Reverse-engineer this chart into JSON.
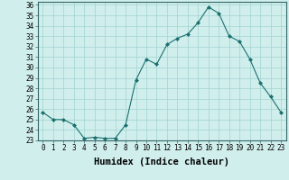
{
  "x": [
    0,
    1,
    2,
    3,
    4,
    5,
    6,
    7,
    8,
    9,
    10,
    11,
    12,
    13,
    14,
    15,
    16,
    17,
    18,
    19,
    20,
    21,
    22,
    23
  ],
  "y": [
    25.7,
    25.0,
    25.0,
    24.5,
    23.2,
    23.3,
    23.2,
    23.2,
    24.5,
    28.8,
    30.8,
    30.3,
    32.2,
    32.8,
    33.2,
    34.3,
    35.8,
    35.2,
    33.0,
    32.5,
    30.8,
    28.5,
    27.2,
    25.7
  ],
  "line_color": "#1a7070",
  "marker": "D",
  "marker_size": 2,
  "bg_color": "#d0eeec",
  "grid_color": "#a0d4d0",
  "xlabel": "Humidex (Indice chaleur)",
  "ylim": [
    23,
    36
  ],
  "xlim": [
    -0.5,
    23.5
  ],
  "yticks": [
    23,
    24,
    25,
    26,
    27,
    28,
    29,
    30,
    31,
    32,
    33,
    34,
    35,
    36
  ],
  "xticks": [
    0,
    1,
    2,
    3,
    4,
    5,
    6,
    7,
    8,
    9,
    10,
    11,
    12,
    13,
    14,
    15,
    16,
    17,
    18,
    19,
    20,
    21,
    22,
    23
  ],
  "tick_label_size": 5.5,
  "xlabel_size": 7.5
}
